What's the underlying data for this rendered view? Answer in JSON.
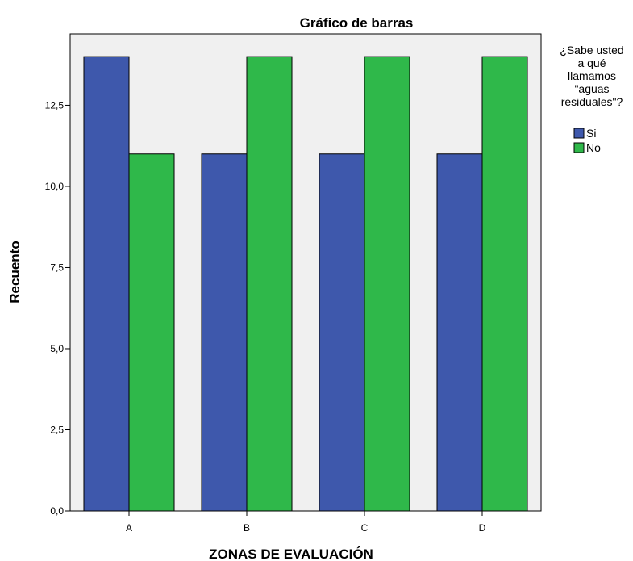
{
  "chart_data": {
    "type": "bar",
    "title": "Gráfico de barras",
    "xlabel": "ZONAS DE EVALUACIÓN",
    "ylabel": "Recuento",
    "categories": [
      "A",
      "B",
      "C",
      "D"
    ],
    "series": [
      {
        "name": "Si",
        "values": [
          14,
          11,
          11,
          11
        ],
        "color": "#3e58ac"
      },
      {
        "name": "No",
        "values": [
          11,
          14,
          14,
          14
        ],
        "color": "#2fb84a"
      }
    ],
    "ylim": [
      0,
      14.7
    ],
    "yticks": [
      0,
      2.5,
      5,
      7.5,
      10,
      12.5
    ],
    "ytick_labels": [
      "0,0",
      "2,5",
      "5,0",
      "7,5",
      "10,0",
      "12,5"
    ],
    "grid": false,
    "legend": {
      "title_lines": [
        "¿Sabe usted",
        "a qué",
        "llamamos",
        "\"aguas",
        "residuales\"?"
      ],
      "placement": "right"
    },
    "plot_background": "#f0f0f0"
  }
}
